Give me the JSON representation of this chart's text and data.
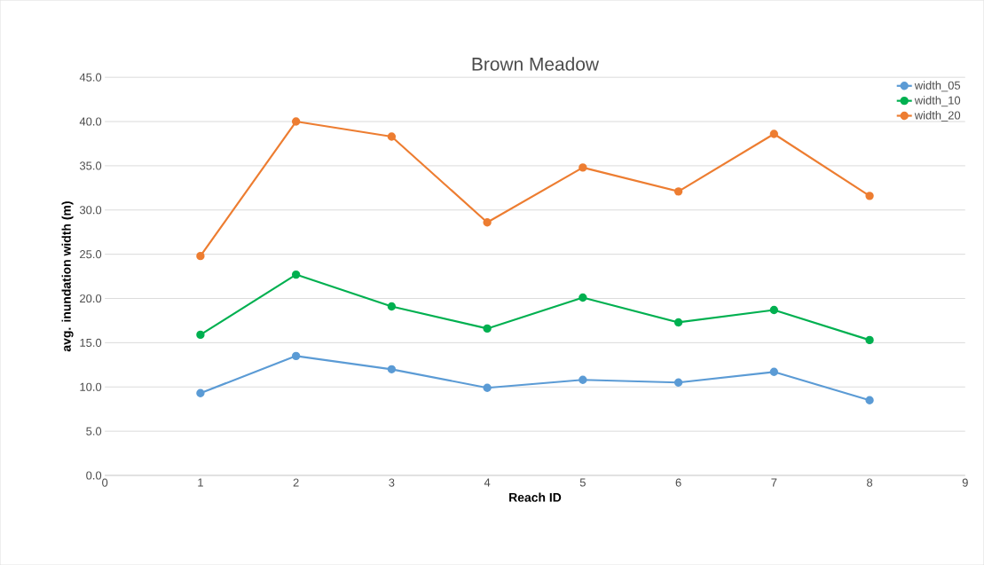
{
  "chart_data": {
    "type": "line",
    "title": "Brown Meadow",
    "xlabel": "Reach ID",
    "ylabel": "avg. inundation width (m)",
    "x": [
      1,
      2,
      3,
      4,
      5,
      6,
      7,
      8
    ],
    "series": [
      {
        "name": "width_05",
        "color": "#5b9bd5",
        "values": [
          9.3,
          13.5,
          12.0,
          9.9,
          10.8,
          10.5,
          11.7,
          8.5
        ]
      },
      {
        "name": "width_10",
        "color": "#00b050",
        "values": [
          15.9,
          22.7,
          19.1,
          16.6,
          20.1,
          17.3,
          18.7,
          15.3
        ]
      },
      {
        "name": "width_20",
        "color": "#ed7d31",
        "values": [
          24.8,
          40.0,
          38.3,
          28.6,
          34.8,
          32.1,
          38.6,
          31.6
        ]
      }
    ],
    "xlim": [
      0,
      9
    ],
    "xticks": [
      0,
      1,
      2,
      3,
      4,
      5,
      6,
      7,
      8,
      9
    ],
    "ylim": [
      0,
      45
    ],
    "yticks": [
      {
        "value": 0,
        "label": "0.0"
      },
      {
        "value": 5,
        "label": "5.0"
      },
      {
        "value": 10,
        "label": "10.0"
      },
      {
        "value": 15,
        "label": "15.0"
      },
      {
        "value": 20,
        "label": "20.0"
      },
      {
        "value": 25,
        "label": "25.0"
      },
      {
        "value": 30,
        "label": "30.0"
      },
      {
        "value": 35,
        "label": "35.0"
      },
      {
        "value": 40,
        "label": "40.0"
      },
      {
        "value": 45,
        "label": "45.0"
      }
    ],
    "grid": "y",
    "legend": "top right",
    "marker": "circle",
    "line_style": "solid"
  }
}
